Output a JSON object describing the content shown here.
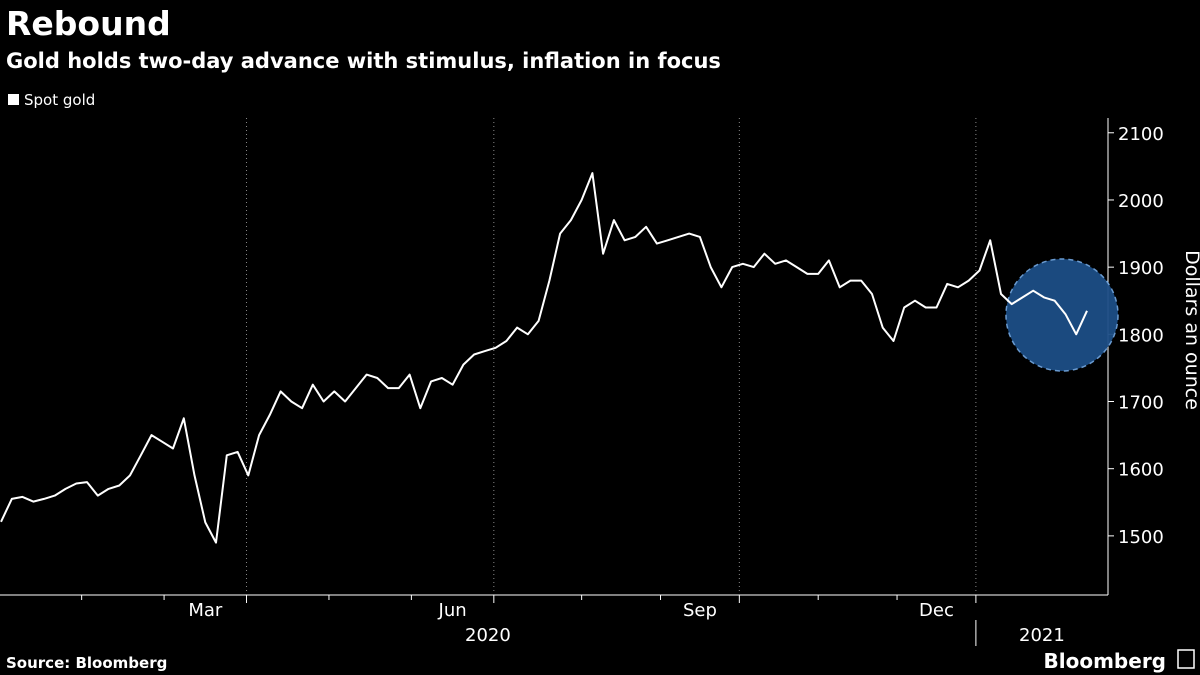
{
  "chart_data": {
    "type": "line",
    "title": "Rebound",
    "subtitle": "Gold holds two-day advance with stimulus, inflation in focus",
    "y_label": "Dollars an ounce",
    "source": "Source: Bloomberg",
    "brand": "Bloomberg",
    "x_groups": [
      "2020",
      "2021"
    ],
    "categories": [
      null,
      null,
      null,
      null,
      null,
      null,
      null,
      null,
      null,
      null,
      null,
      null,
      null,
      null,
      null,
      null,
      null,
      null,
      null,
      "Mar",
      null,
      null,
      null,
      null,
      null,
      null,
      null,
      null,
      null,
      null,
      null,
      null,
      null,
      null,
      null,
      null,
      null,
      null,
      null,
      null,
      null,
      null,
      "Jun",
      null,
      null,
      null,
      null,
      null,
      null,
      null,
      null,
      null,
      null,
      null,
      null,
      null,
      null,
      null,
      null,
      null,
      null,
      null,
      null,
      null,
      null,
      "Sep",
      null,
      null,
      null,
      null,
      null,
      null,
      null,
      null,
      null,
      null,
      null,
      null,
      null,
      null,
      null,
      null,
      null,
      null,
      null,
      null,
      null,
      "Dec",
      null,
      null,
      null,
      null,
      null,
      null,
      null,
      null,
      null,
      null,
      null,
      null,
      null,
      null
    ],
    "series": [
      {
        "name": "Spot gold",
        "color": "#ffffff",
        "values": [
          1521,
          1555,
          1558,
          1551,
          1555,
          1560,
          1570,
          1578,
          1580,
          1560,
          1570,
          1575,
          1590,
          1620,
          1650,
          1640,
          1630,
          1675,
          1590,
          1520,
          1490,
          1620,
          1625,
          1590,
          1650,
          1680,
          1715,
          1700,
          1690,
          1725,
          1700,
          1715,
          1700,
          1720,
          1740,
          1735,
          1720,
          1720,
          1740,
          1690,
          1730,
          1735,
          1725,
          1755,
          1770,
          1775,
          1780,
          1790,
          1810,
          1800,
          1820,
          1880,
          1950,
          1970,
          2000,
          2040,
          1920,
          1970,
          1940,
          1945,
          1960,
          1935,
          1940,
          1945,
          1950,
          1945,
          1900,
          1870,
          1900,
          1905,
          1900,
          1920,
          1905,
          1910,
          1900,
          1890,
          1890,
          1910,
          1870,
          1880,
          1880,
          1860,
          1810,
          1790,
          1840,
          1850,
          1840,
          1840,
          1875,
          1870,
          1880,
          1895,
          1940,
          1860,
          1845,
          1855,
          1865,
          1855,
          1850,
          1830,
          1800,
          1835
        ]
      }
    ],
    "ylim": [
      1412,
      2122
    ],
    "yticks": [
      1500,
      1600,
      1700,
      1800,
      1900,
      2000,
      2100
    ],
    "legend": "top-left",
    "grid": true
  }
}
